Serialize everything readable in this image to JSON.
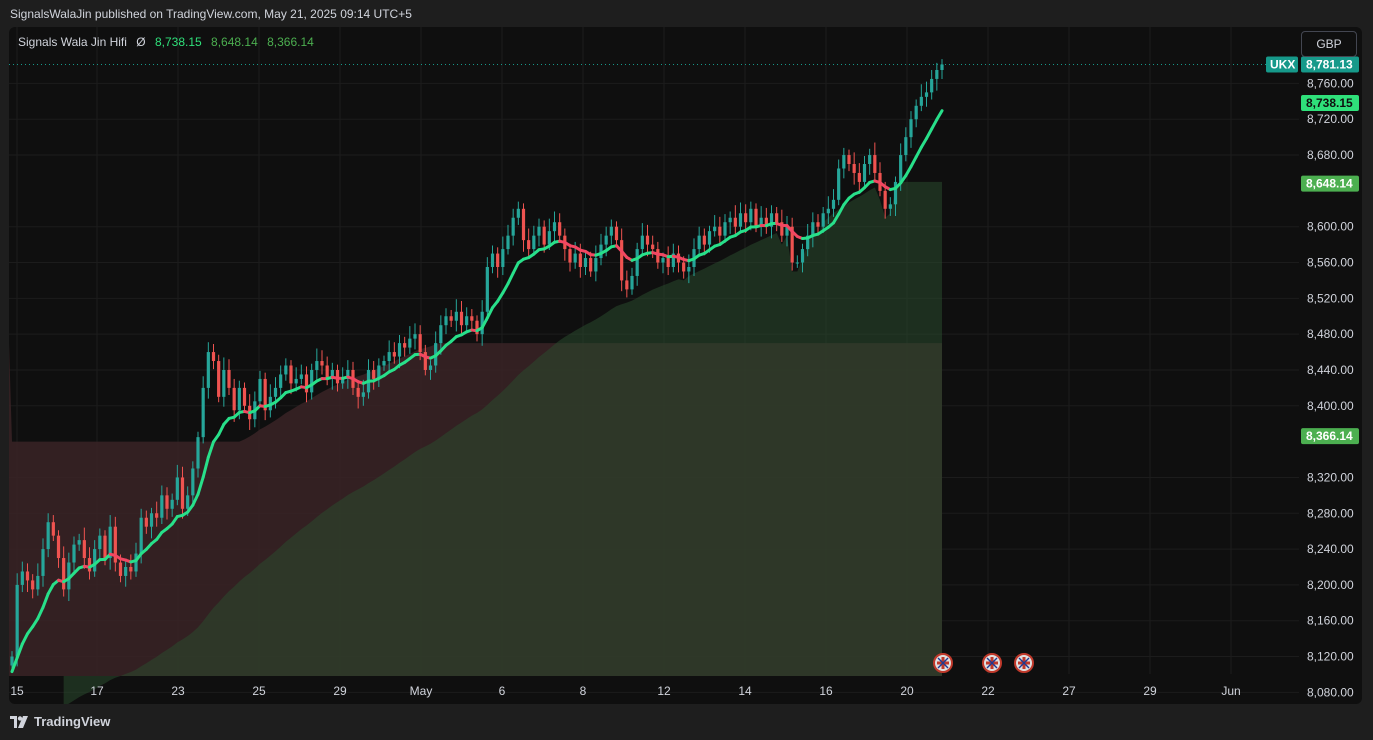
{
  "header": {
    "published_text": "SignalsWalaJin published on TradingView.com, May 21, 2025 09:14 UTC+5"
  },
  "indicator": {
    "name": "Signals Wala Jin Hifi",
    "symbol": "Ø",
    "value1": "8,738.15",
    "value2": "8,648.14",
    "value3": "8,366.14"
  },
  "currency_button": "GBP",
  "footer": {
    "brand": "TradingView"
  },
  "colors": {
    "background": "#0f0f0f",
    "candle_up": "#26a69a",
    "candle_down": "#ef5350",
    "line_up": "#28e08a",
    "line_down": "#f24762",
    "cloud_green": "#2a4a2e",
    "cloud_red": "#3a2326",
    "price_label_ukx": "#16998a",
    "price_label_green": "#2fe07a",
    "price_label_green2": "#4caf50"
  },
  "chart_data": {
    "type": "candlestick",
    "symbol": "UKX",
    "currency": "GBP",
    "y_ticks": [
      8080,
      8120,
      8160,
      8200,
      8240,
      8280,
      8320,
      8400,
      8440,
      8480,
      8520,
      8560,
      8600,
      8680,
      8720,
      8760
    ],
    "ylim": [
      8067,
      8823
    ],
    "x_ticks": [
      "15",
      "17",
      "23",
      "25",
      "29",
      "May",
      "6",
      "8",
      "12",
      "14",
      "16",
      "20",
      "22",
      "27",
      "29",
      "Jun"
    ],
    "price_labels": [
      {
        "tag": "UKX",
        "value": "8,781.13",
        "price": 8781.13
      },
      {
        "value": "8,738.15",
        "price": 8738.15
      },
      {
        "value": "8,648.14",
        "price": 8648.14
      },
      {
        "value": "8,366.14",
        "price": 8366.14
      }
    ],
    "events_icon": "uk-flag-icon",
    "event_count": 3,
    "closes": [
      8120,
      8200,
      8215,
      8205,
      8195,
      8210,
      8240,
      8270,
      8255,
      8230,
      8195,
      8225,
      8245,
      8250,
      8230,
      8215,
      8240,
      8255,
      8230,
      8265,
      8225,
      8210,
      8220,
      8215,
      8235,
      8275,
      8265,
      8280,
      8275,
      8300,
      8285,
      8295,
      8320,
      8285,
      8300,
      8330,
      8365,
      8420,
      8460,
      8450,
      8410,
      8440,
      8420,
      8395,
      8420,
      8400,
      8385,
      8405,
      8430,
      8395,
      8410,
      8420,
      8435,
      8445,
      8425,
      8430,
      8435,
      8415,
      8440,
      8450,
      8445,
      8430,
      8440,
      8425,
      8430,
      8440,
      8420,
      8410,
      8415,
      8440,
      8430,
      8445,
      8450,
      8460,
      8455,
      8470,
      8465,
      8475,
      8480,
      8460,
      8440,
      8445,
      8470,
      8490,
      8500,
      8495,
      8505,
      8490,
      8500,
      8495,
      8480,
      8505,
      8555,
      8570,
      8555,
      8575,
      8590,
      8610,
      8620,
      8585,
      8575,
      8590,
      8600,
      8580,
      8595,
      8605,
      8590,
      8575,
      8560,
      8570,
      8555,
      8565,
      8550,
      8565,
      8580,
      8590,
      8600,
      8585,
      8540,
      8530,
      8545,
      8575,
      8590,
      8580,
      8575,
      8560,
      8565,
      8555,
      8570,
      8560,
      8550,
      8555,
      8575,
      8590,
      8580,
      8595,
      8600,
      8590,
      8605,
      8610,
      8600,
      8615,
      8605,
      8620,
      8600,
      8610,
      8600,
      8615,
      8605,
      8590,
      8600,
      8560,
      8560,
      8575,
      8590,
      8605,
      8600,
      8615,
      8620,
      8630,
      8665,
      8680,
      8670,
      8660,
      8650,
      8670,
      8680,
      8660,
      8640,
      8620,
      8625,
      8650,
      8680,
      8700,
      8720,
      8735,
      8745,
      8750,
      8765,
      8775,
      8781.13
    ]
  }
}
